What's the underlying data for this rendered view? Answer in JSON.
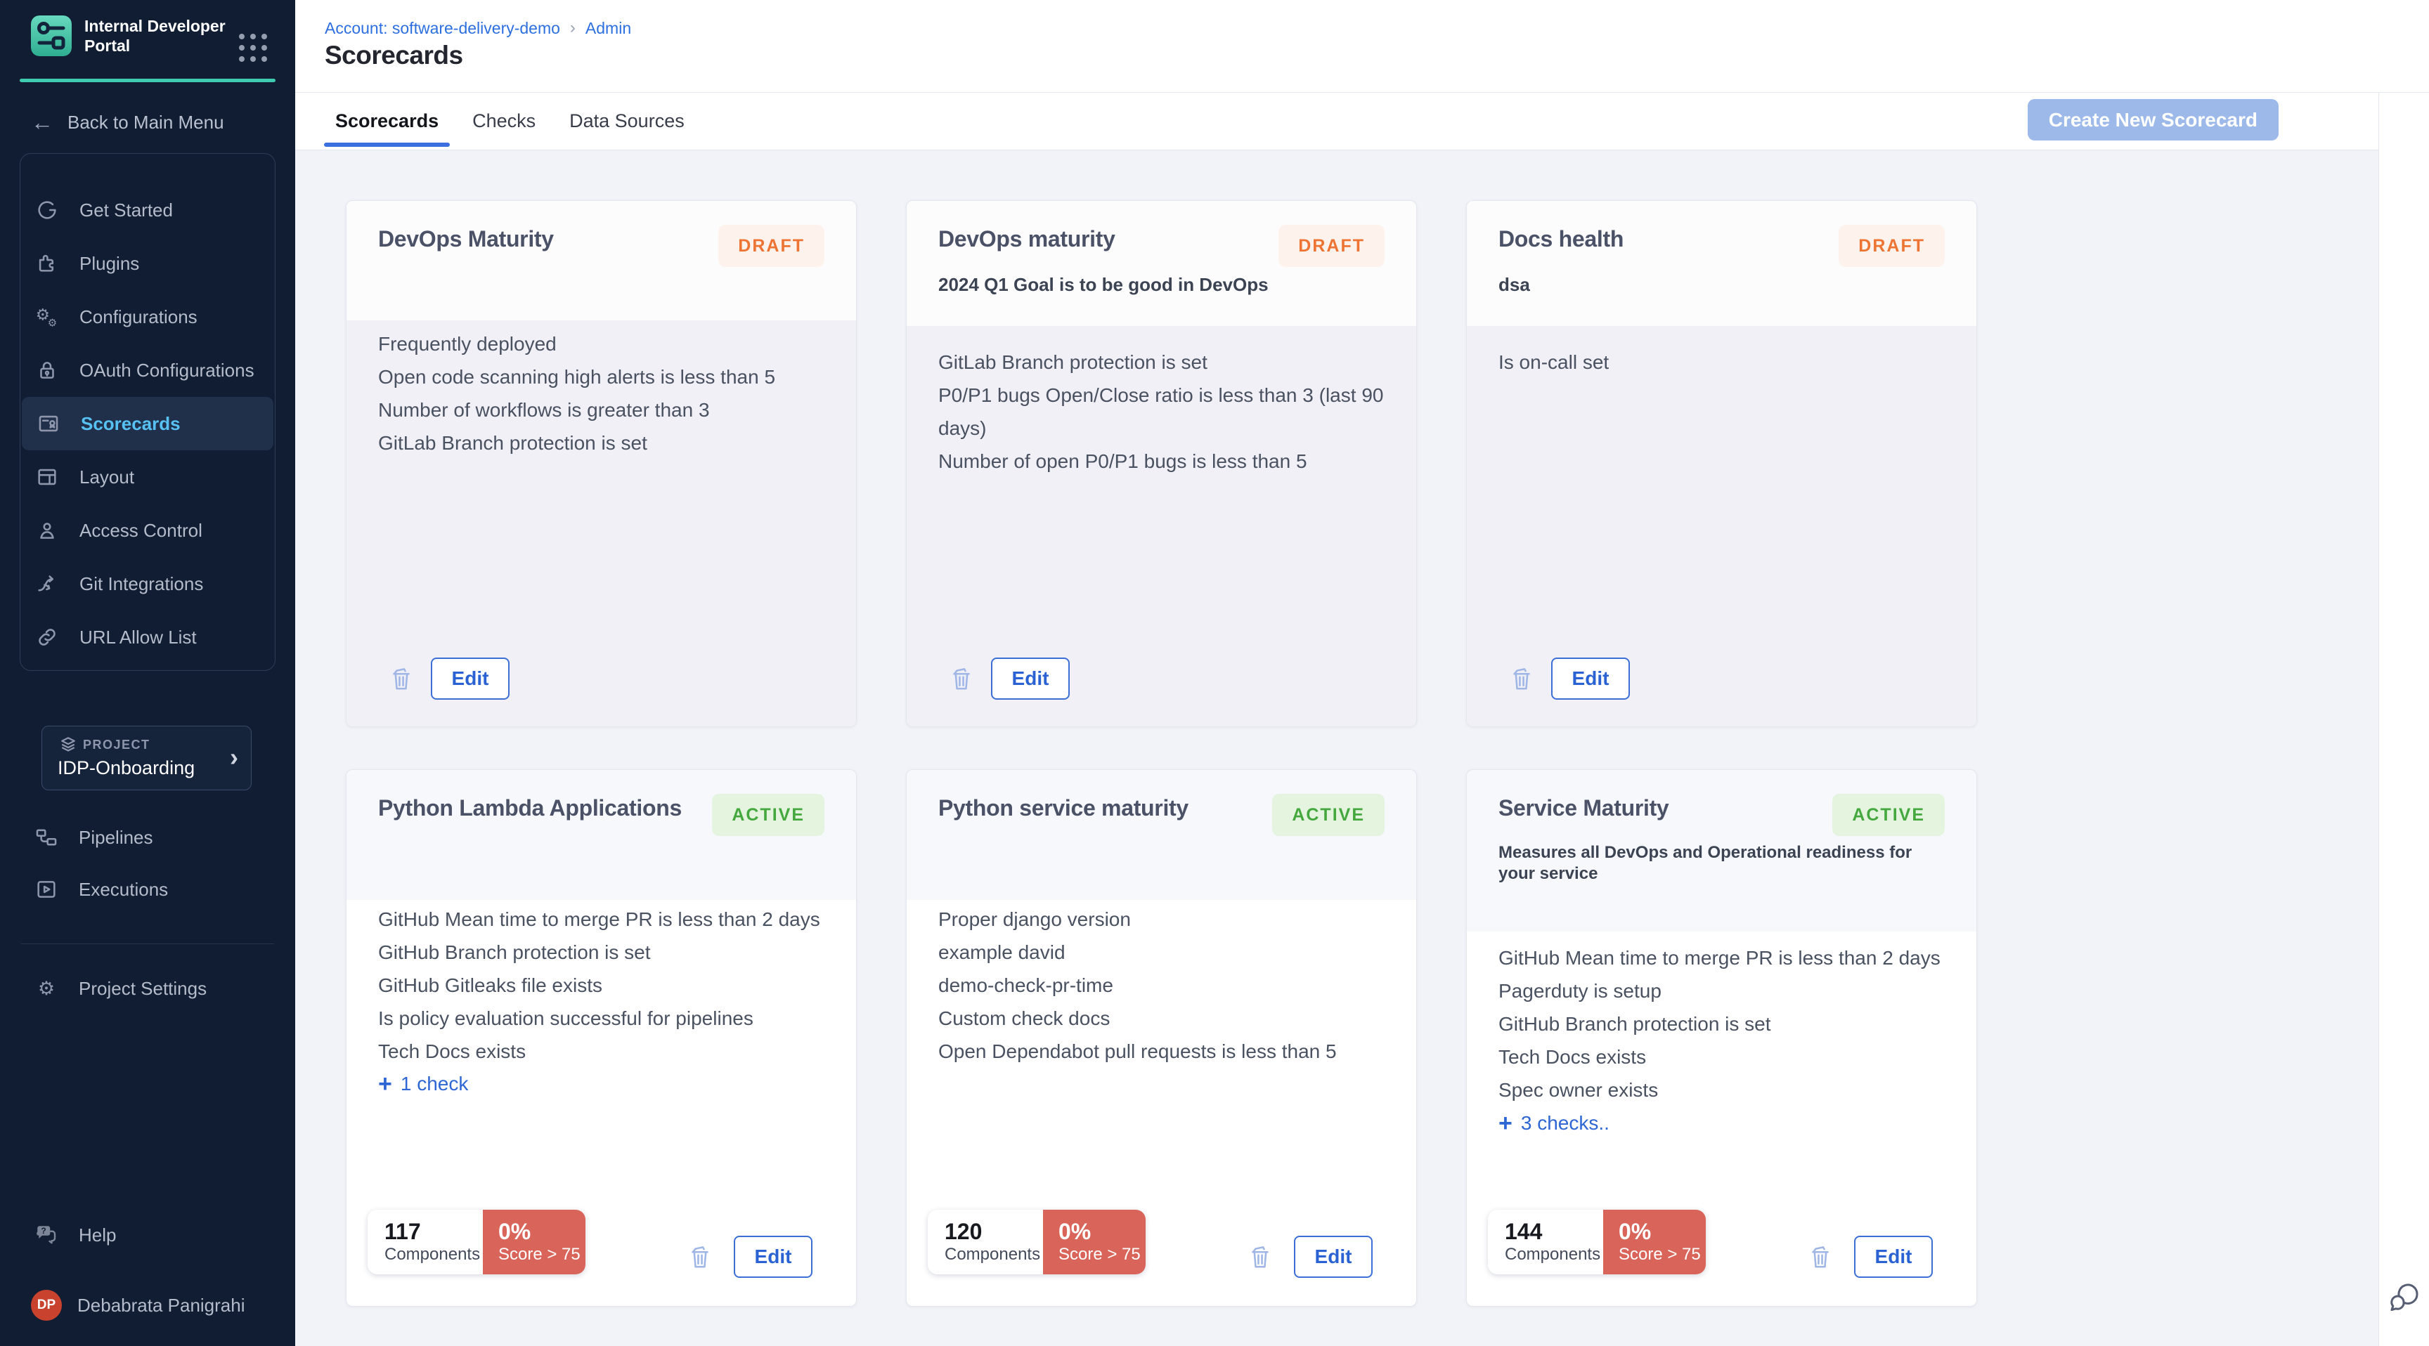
{
  "brand": {
    "title": "Internal Developer Portal"
  },
  "sidebar": {
    "back_label": "Back to Main Menu",
    "nav": [
      {
        "label": "Get Started",
        "icon": "get-started-icon",
        "active": false
      },
      {
        "label": "Plugins",
        "icon": "plugins-icon",
        "active": false
      },
      {
        "label": "Configurations",
        "icon": "configurations-icon",
        "active": false
      },
      {
        "label": "OAuth Configurations",
        "icon": "oauth-lock-icon",
        "active": false
      },
      {
        "label": "Scorecards",
        "icon": "scorecards-icon",
        "active": true
      },
      {
        "label": "Layout",
        "icon": "layout-icon",
        "active": false
      },
      {
        "label": "Access Control",
        "icon": "access-control-icon",
        "active": false
      },
      {
        "label": "Git Integrations",
        "icon": "git-integrations-icon",
        "active": false
      },
      {
        "label": "URL Allow List",
        "icon": "url-allow-list-icon",
        "active": false
      }
    ],
    "project": {
      "eyebrow": "PROJECT",
      "name": "IDP-Onboarding"
    },
    "project_nav": [
      {
        "label": "Pipelines",
        "icon": "pipelines-icon"
      },
      {
        "label": "Executions",
        "icon": "executions-icon"
      }
    ],
    "settings_label": "Project Settings",
    "help_label": "Help",
    "user": {
      "initials": "DP",
      "name": "Debabrata Panigrahi"
    }
  },
  "header": {
    "breadcrumb_account": "Account: software-delivery-demo",
    "breadcrumb_separator": "›",
    "breadcrumb_page": "Admin",
    "title": "Scorecards"
  },
  "tabs": [
    {
      "label": "Scorecards",
      "active": true
    },
    {
      "label": "Checks",
      "active": false
    },
    {
      "label": "Data Sources",
      "active": false
    }
  ],
  "actions": {
    "create_label": "Create New Scorecard",
    "edit_label": "Edit"
  },
  "cards": [
    {
      "title": "DevOps Maturity",
      "status": "DRAFT",
      "description": "",
      "checks": [
        "Frequently deployed",
        "Open code scanning high alerts is less than 5",
        "Number of workflows is greater than 3",
        "GitLab Branch protection is set"
      ],
      "more_label": "",
      "stats": null
    },
    {
      "title": "DevOps maturity",
      "status": "DRAFT",
      "description": "2024 Q1 Goal is to be good in DevOps",
      "checks": [
        "GitLab Branch protection is set",
        "P0/P1 bugs Open/Close ratio is less than 3 (last 90 days)",
        "Number of open P0/P1 bugs is less than 5"
      ],
      "more_label": "",
      "stats": null
    },
    {
      "title": "Docs health",
      "status": "DRAFT",
      "description": "dsa",
      "checks": [
        "Is on-call set"
      ],
      "more_label": "",
      "stats": null
    },
    {
      "title": "Python Lambda Applications",
      "status": "ACTIVE",
      "description": "",
      "checks": [
        "GitHub Mean time to merge PR is less than 2 days",
        "GitHub Branch protection is set",
        "GitHub Gitleaks file exists",
        "Is policy evaluation successful for pipelines",
        "Tech Docs exists"
      ],
      "more_label": "1 check",
      "stats": {
        "components": "117",
        "components_label": "Components",
        "score": "0%",
        "score_label": "Score > 75"
      }
    },
    {
      "title": "Python service maturity",
      "status": "ACTIVE",
      "description": "",
      "checks": [
        "Proper django version",
        "example david",
        "demo-check-pr-time",
        "Custom check docs",
        "Open Dependabot pull requests is less than 5"
      ],
      "more_label": "",
      "stats": {
        "components": "120",
        "components_label": "Components",
        "score": "0%",
        "score_label": "Score > 75"
      }
    },
    {
      "title": "Service Maturity",
      "status": "ACTIVE",
      "description": "Measures all DevOps and Operational readiness for your service",
      "checks": [
        "GitHub Mean time to merge PR is less than 2 days",
        "Pagerduty is setup",
        "GitHub Branch protection is set",
        "Tech Docs exists",
        "Spec owner exists"
      ],
      "more_label": "3 checks..",
      "stats": {
        "components": "144",
        "components_label": "Components",
        "score": "0%",
        "score_label": "Score > 75"
      }
    }
  ],
  "colors": {
    "sidebar_bg": "#101d32",
    "brand_teal": "#3ecbb0",
    "active_item_bg": "#202f4a",
    "active_item_text": "#58c1f3",
    "link_blue": "#2e6fe0",
    "edit_blue": "#2a62d4",
    "tab_underline": "#3b6fe0",
    "draft_text": "#ed7432",
    "draft_bg": "#fdf3ec",
    "active_text": "#44a83e",
    "active_bg": "#e5f4df",
    "score_red": "#d9655a",
    "content_bg": "#f2f3f8",
    "avatar_red": "#c8422e",
    "create_btn_bg": "#9cb9e9"
  }
}
